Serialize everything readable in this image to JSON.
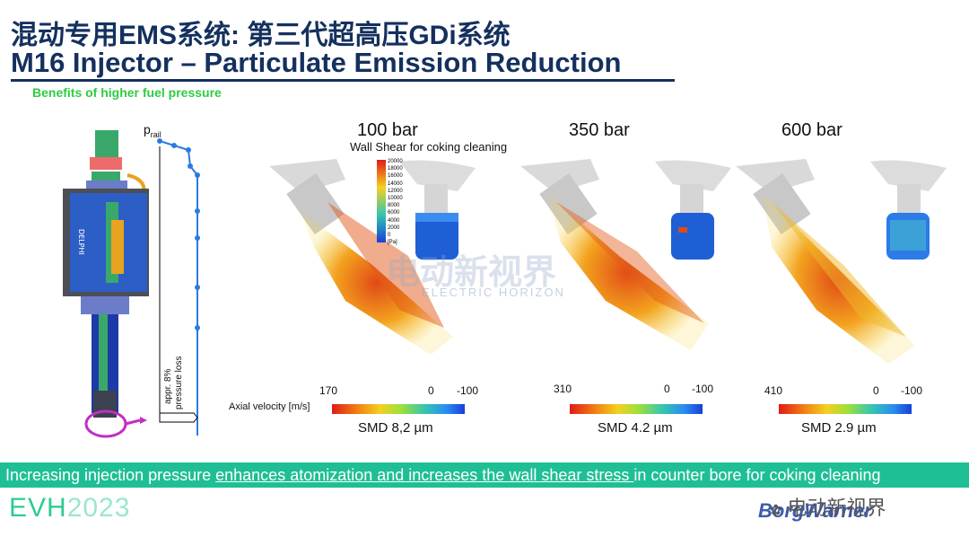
{
  "header": {
    "title_cn": "混动专用EMS系统: 第三代超高压GDi系统",
    "title_en": "M16 Injector – Particulate Emission Reduction",
    "subtitle": "Benefits of higher fuel pressure"
  },
  "injector": {
    "p_rail_label": "p",
    "p_rail_sub": "rail",
    "pressure_loss_line1": "appr. 8%",
    "pressure_loss_line2": "pressure loss"
  },
  "panels": [
    {
      "pressure": "100 bar",
      "wall_shear_title": "Wall Shear for coking cleaning",
      "shear_ticks": [
        "20000",
        "18000",
        "16000",
        "14000",
        "12000",
        "10000",
        "8000",
        "6000",
        "4000",
        "2000",
        "0",
        "[Pa]"
      ],
      "scale": [
        "170",
        "0",
        "-100"
      ],
      "smd": "SMD 8,2 µm"
    },
    {
      "pressure": "350 bar",
      "scale": [
        "310",
        "0",
        "-100"
      ],
      "smd": "SMD 4.2 µm"
    },
    {
      "pressure": "600 bar",
      "scale": [
        "410",
        "0",
        "-100"
      ],
      "smd": "SMD 2.9 µm"
    }
  ],
  "axial_velocity_label": "Axial velocity [m/s]",
  "banner": {
    "lead": "Increasing injection pressure ",
    "underlined": "enhances atomization and increases the wall shear stress ",
    "tail": "in counter bore for coking cleaning"
  },
  "footer": {
    "evh": "EVH",
    "year": "2023",
    "watermark_cn": "电动新视界",
    "watermark_en": "ELECTRIC HORIZON",
    "brand": "BorgWarner"
  },
  "colors": {
    "title": "#14305e",
    "subtitle": "#2ecc40",
    "banner": "#1fbf95",
    "evh": "#2ecc8f"
  }
}
